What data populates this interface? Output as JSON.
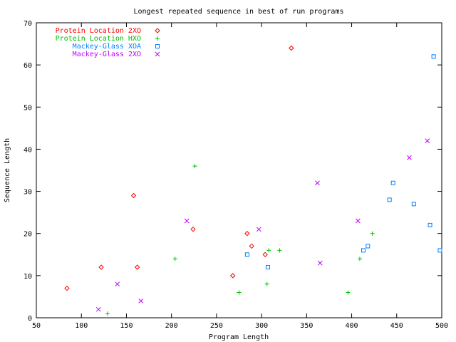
{
  "chart_data": {
    "type": "scatter",
    "title": "Longest repeated sequence in best of run programs",
    "xlabel": "Program Length",
    "ylabel": "Sequence Length",
    "xlim": [
      50,
      500
    ],
    "ylim": [
      0,
      70
    ],
    "xticks": [
      50,
      100,
      150,
      200,
      250,
      300,
      350,
      400,
      450,
      500
    ],
    "yticks": [
      0,
      10,
      20,
      30,
      40,
      50,
      60,
      70
    ],
    "grid": false,
    "legend_position": "top-left",
    "series": [
      {
        "name": "Protein Location 2XO",
        "color": "#ff0000",
        "marker": "diamond",
        "points": [
          [
            84,
            7
          ],
          [
            122,
            12
          ],
          [
            158,
            29
          ],
          [
            162,
            12
          ],
          [
            224,
            21
          ],
          [
            268,
            10
          ],
          [
            284,
            20
          ],
          [
            289,
            17
          ],
          [
            304,
            15
          ],
          [
            333,
            64
          ]
        ]
      },
      {
        "name": "Protein Location HXO",
        "color": "#00c000",
        "marker": "plus",
        "points": [
          [
            129,
            1
          ],
          [
            204,
            14
          ],
          [
            226,
            36
          ],
          [
            275,
            6
          ],
          [
            306,
            8
          ],
          [
            308,
            16
          ],
          [
            320,
            16
          ],
          [
            396,
            6
          ],
          [
            409,
            14
          ],
          [
            423,
            20
          ]
        ]
      },
      {
        "name": "Mackey-Glass XOA",
        "color": "#0080ff",
        "marker": "square",
        "points": [
          [
            284,
            15
          ],
          [
            307,
            12
          ],
          [
            413,
            16
          ],
          [
            418,
            17
          ],
          [
            442,
            28
          ],
          [
            446,
            32
          ],
          [
            469,
            27
          ],
          [
            487,
            22
          ],
          [
            491,
            62
          ],
          [
            498,
            16
          ]
        ]
      },
      {
        "name": "Mackey-Glass 2XO",
        "color": "#c000ff",
        "marker": "cross",
        "points": [
          [
            119,
            2
          ],
          [
            140,
            8
          ],
          [
            166,
            4
          ],
          [
            217,
            23
          ],
          [
            297,
            21
          ],
          [
            362,
            32
          ],
          [
            365,
            13
          ],
          [
            407,
            23
          ],
          [
            464,
            38
          ],
          [
            484,
            42
          ]
        ]
      }
    ]
  }
}
